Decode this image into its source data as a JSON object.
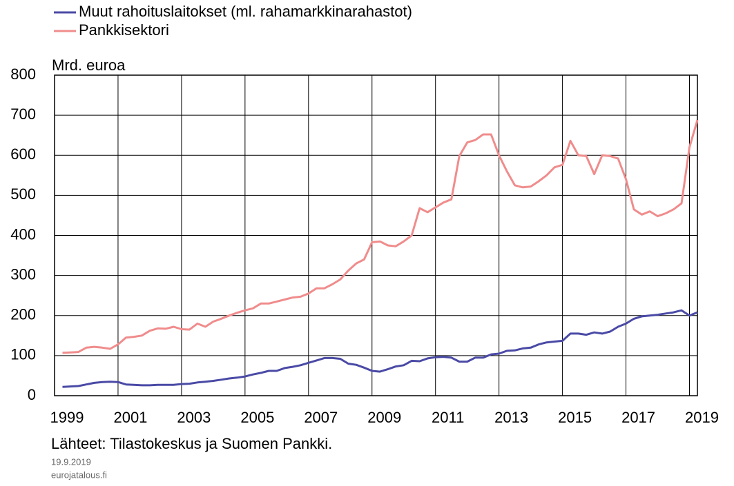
{
  "chart_data": {
    "type": "line",
    "y_label": "Mrd. euroa",
    "source": "Lähteet: Tilastokeskus ja Suomen Pankki.",
    "date": "19.9.2019",
    "site": "eurojatalous.fi",
    "x": [
      1999.25,
      1999.5,
      1999.75,
      2000.0,
      2000.25,
      2000.5,
      2000.75,
      2001.0,
      2001.25,
      2001.5,
      2001.75,
      2002.0,
      2002.25,
      2002.5,
      2002.75,
      2003.0,
      2003.25,
      2003.5,
      2003.75,
      2004.0,
      2004.25,
      2004.5,
      2004.75,
      2005.0,
      2005.25,
      2005.5,
      2005.75,
      2006.0,
      2006.25,
      2006.5,
      2006.75,
      2007.0,
      2007.25,
      2007.5,
      2007.75,
      2008.0,
      2008.25,
      2008.5,
      2008.75,
      2009.0,
      2009.25,
      2009.5,
      2009.75,
      2010.0,
      2010.25,
      2010.5,
      2010.75,
      2011.0,
      2011.25,
      2011.5,
      2011.75,
      2012.0,
      2012.25,
      2012.5,
      2012.75,
      2013.0,
      2013.25,
      2013.5,
      2013.75,
      2014.0,
      2014.25,
      2014.5,
      2014.75,
      2015.0,
      2015.25,
      2015.5,
      2015.75,
      2016.0,
      2016.25,
      2016.5,
      2016.75,
      2017.0,
      2017.25,
      2017.5,
      2017.75,
      2018.0,
      2018.25,
      2018.5,
      2018.75,
      2019.0,
      2019.25
    ],
    "series": [
      {
        "name": "Muut rahoituslaitokset (ml. rahamarkkinarahastot)",
        "color": "#4a4aa6",
        "values": [
          22,
          23,
          24,
          28,
          32,
          34,
          35,
          34,
          28,
          27,
          26,
          26,
          27,
          27,
          27,
          29,
          30,
          33,
          35,
          37,
          40,
          43,
          45,
          48,
          53,
          57,
          62,
          62,
          69,
          72,
          76,
          82,
          88,
          94,
          94,
          92,
          80,
          77,
          70,
          62,
          60,
          66,
          73,
          76,
          87,
          86,
          93,
          96,
          97,
          95,
          85,
          85,
          95,
          95,
          103,
          105,
          112,
          113,
          118,
          120,
          128,
          133,
          135,
          137,
          155,
          155,
          152,
          158,
          155,
          160,
          172,
          180,
          192,
          198,
          200,
          202,
          205,
          208,
          213,
          200,
          208
        ]
      },
      {
        "name": "Pankkisektori",
        "color": "#f08c8c",
        "values": [
          107,
          108,
          109,
          120,
          122,
          120,
          117,
          128,
          145,
          147,
          150,
          162,
          168,
          167,
          172,
          166,
          165,
          180,
          172,
          185,
          192,
          200,
          207,
          213,
          218,
          230,
          230,
          235,
          240,
          245,
          247,
          255,
          268,
          268,
          278,
          290,
          312,
          330,
          340,
          383,
          385,
          375,
          373,
          385,
          400,
          468,
          458,
          470,
          482,
          490,
          598,
          632,
          638,
          652,
          652,
          600,
          560,
          525,
          520,
          522,
          535,
          550,
          570,
          576,
          636,
          600,
          598,
          553,
          600,
          598,
          592,
          540,
          465,
          452,
          460,
          448,
          455,
          465,
          480,
          620,
          688
        ]
      }
    ],
    "xlim": [
      1999,
      2019.25
    ],
    "xticks": [
      1999,
      2001,
      2003,
      2005,
      2007,
      2009,
      2011,
      2013,
      2015,
      2017,
      2019
    ],
    "ylim": [
      0,
      800
    ],
    "yticks": [
      0,
      100,
      200,
      300,
      400,
      500,
      600,
      700,
      800
    ],
    "grid": true
  }
}
